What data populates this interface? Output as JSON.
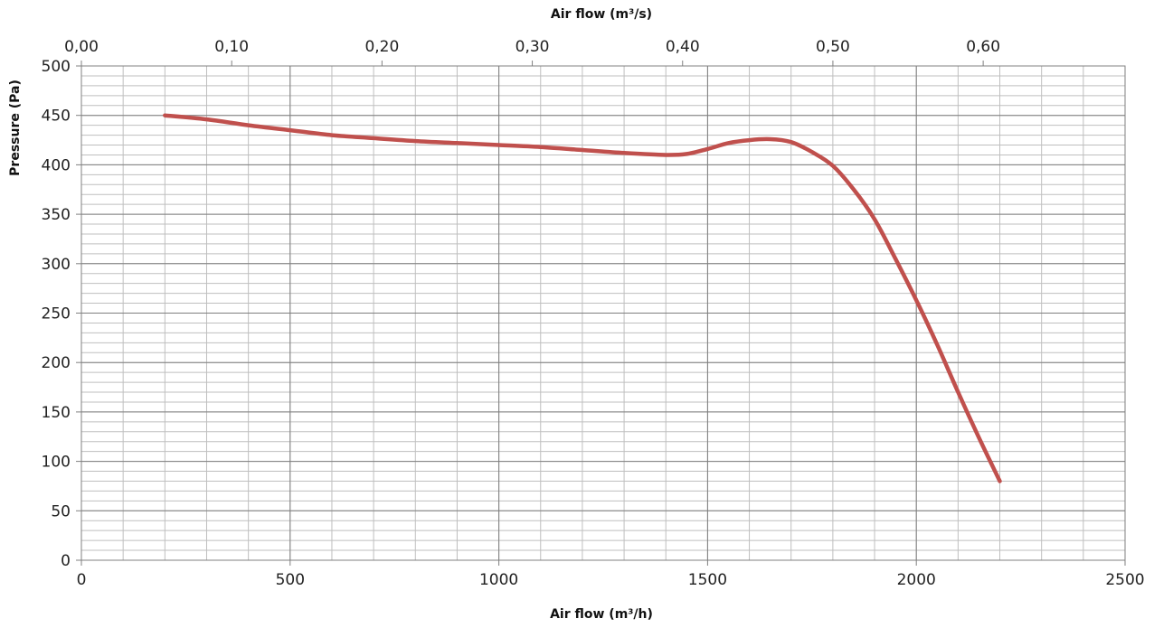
{
  "chart_data": {
    "type": "line",
    "x_bottom": {
      "label": "Air flow (m³/h)",
      "range": [
        0,
        2500
      ],
      "ticks": [
        "0",
        "500",
        "1000",
        "1500",
        "2000",
        "2500"
      ],
      "tick_values": [
        0,
        500,
        1000,
        1500,
        2000,
        2500
      ]
    },
    "x_top": {
      "label": "Air flow (m³/s)",
      "range": [
        0,
        0.6944
      ],
      "ticks": [
        "0,00",
        "0,10",
        "0,20",
        "0,30",
        "0,40",
        "0,50",
        "0,60"
      ],
      "tick_values": [
        0,
        0.1,
        0.2,
        0.3,
        0.4,
        0.5,
        0.6
      ]
    },
    "y": {
      "label": "Pressure (Pa)",
      "range": [
        0,
        500
      ],
      "ticks": [
        "0",
        "50",
        "100",
        "150",
        "200",
        "250",
        "300",
        "350",
        "400",
        "450",
        "500"
      ],
      "tick_values": [
        0,
        50,
        100,
        150,
        200,
        250,
        300,
        350,
        400,
        450,
        500
      ]
    },
    "grid": true,
    "series": [
      {
        "color": "#c0504d",
        "x": [
          200,
          300,
          400,
          500,
          600,
          700,
          800,
          900,
          1000,
          1100,
          1200,
          1300,
          1400,
          1450,
          1500,
          1550,
          1600,
          1650,
          1700,
          1750,
          1800,
          1850,
          1900,
          1950,
          2000,
          2050,
          2100,
          2150,
          2200
        ],
        "y": [
          450,
          446,
          440,
          435,
          430,
          427,
          424,
          422,
          420,
          418,
          415,
          412,
          410,
          411,
          416,
          422,
          425,
          426,
          423,
          413,
          399,
          375,
          345,
          305,
          263,
          218,
          170,
          124,
          80
        ]
      }
    ]
  }
}
